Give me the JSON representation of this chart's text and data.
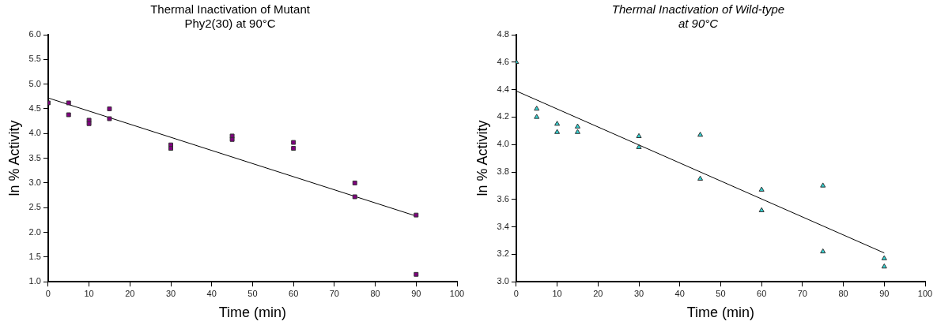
{
  "chart_data": [
    {
      "type": "scatter",
      "title": "Thermal Inactivation of Mutant\nPhy2(30) at 90°C",
      "xlabel": "Time (min)",
      "ylabel": "ln % Activity",
      "xlim": [
        0,
        100
      ],
      "xticks": [
        0,
        10,
        20,
        30,
        40,
        50,
        60,
        70,
        80,
        90,
        100
      ],
      "ylim": [
        1,
        6
      ],
      "yticks": [
        {
          "value": 1,
          "label": "1.0"
        },
        {
          "value": 1.5,
          "label": "1.5"
        },
        {
          "value": 2,
          "label": "2.0"
        },
        {
          "value": 2.5,
          "label": "2.5"
        },
        {
          "value": 3,
          "label": "3.0"
        },
        {
          "value": 3.5,
          "label": "3.5"
        },
        {
          "value": 4,
          "label": "4.0"
        },
        {
          "value": 4.5,
          "label": "4.5"
        },
        {
          "value": 5,
          "label": "5.0"
        },
        {
          "value": 5.5,
          "label": "5.5"
        },
        {
          "value": 6,
          "label": "6.0"
        }
      ],
      "grid": false,
      "legend": false,
      "marker": "square",
      "series": [
        {
          "color": "#800080",
          "x": [
            0,
            5,
            5,
            10,
            10,
            15,
            15,
            30,
            30,
            45,
            45,
            60,
            60,
            75,
            75,
            90,
            90
          ],
          "values": [
            4.62,
            4.62,
            4.38,
            4.27,
            4.2,
            4.5,
            4.3,
            3.77,
            3.7,
            3.95,
            3.88,
            3.82,
            3.7,
            3.0,
            2.72,
            2.35,
            1.15
          ]
        },
        {
          "type": "line",
          "color": "#000000",
          "marker": "none",
          "x": [
            0,
            90
          ],
          "values": [
            4.72,
            2.33
          ]
        }
      ]
    },
    {
      "type": "scatter",
      "title": "Thermal Inactivation of Wild-type\nat 90°C",
      "xlabel": "Time (min)",
      "ylabel": "ln % Activity",
      "xlim": [
        0,
        100
      ],
      "xticks": [
        0,
        10,
        20,
        30,
        40,
        50,
        60,
        70,
        80,
        90,
        100
      ],
      "ylim": [
        3,
        4.8
      ],
      "yticks": [
        {
          "value": 3,
          "label": "3.0"
        },
        {
          "value": 3.2,
          "label": "3.2"
        },
        {
          "value": 3.4,
          "label": "3.4"
        },
        {
          "value": 3.6,
          "label": "3.6"
        },
        {
          "value": 3.8,
          "label": "3.8"
        },
        {
          "value": 4,
          "label": "4.0"
        },
        {
          "value": 4.2,
          "label": "4.2"
        },
        {
          "value": 4.4,
          "label": "4.4"
        },
        {
          "value": 4.6,
          "label": "4.6"
        },
        {
          "value": 4.8,
          "label": "4.8"
        }
      ],
      "grid": false,
      "legend": false,
      "marker": "triangle",
      "series": [
        {
          "color": "#33d6d6",
          "x": [
            0,
            5,
            5,
            10,
            10,
            15,
            15,
            30,
            30,
            45,
            45,
            60,
            60,
            75,
            75,
            90,
            90
          ],
          "values": [
            4.6,
            4.26,
            4.2,
            4.15,
            4.09,
            4.13,
            4.09,
            4.06,
            3.98,
            4.07,
            3.75,
            3.67,
            3.52,
            3.7,
            3.22,
            3.17,
            3.11
          ]
        },
        {
          "type": "line",
          "color": "#000000",
          "marker": "none",
          "x": [
            0,
            90
          ],
          "values": [
            4.39,
            3.21
          ]
        }
      ]
    }
  ]
}
